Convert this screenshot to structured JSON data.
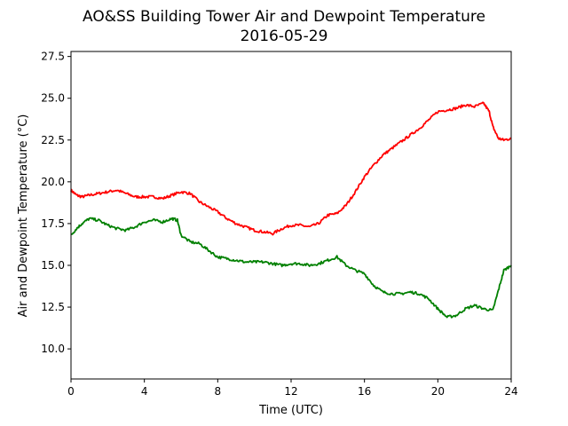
{
  "chart_data": {
    "type": "line",
    "title": "AO&SS Building Tower Air and Dewpoint Temperature",
    "subtitle": "2016-05-29",
    "xlabel": "Time (UTC)",
    "ylabel": "Air and Dewpoint Temperature (°C)",
    "xlim": [
      0,
      24
    ],
    "ylim": [
      8.2,
      27.8
    ],
    "xticks": [
      0,
      4,
      8,
      12,
      16,
      20,
      24
    ],
    "xtick_labels": [
      "0",
      "4",
      "8",
      "12",
      "16",
      "20",
      "24"
    ],
    "yticks": [
      10.0,
      12.5,
      15.0,
      17.5,
      20.0,
      22.5,
      25.0,
      27.5
    ],
    "ytick_labels": [
      "10.0",
      "12.5",
      "15.0",
      "17.5",
      "20.0",
      "22.5",
      "25.0",
      "27.5"
    ],
    "grid": false,
    "series": [
      {
        "color": "#ff0000",
        "x": [
          0,
          0.3,
          0.6,
          1.0,
          1.5,
          2.0,
          2.5,
          3.0,
          3.5,
          4.0,
          4.5,
          5.0,
          5.5,
          6.0,
          6.5,
          7.0,
          7.5,
          8.0,
          8.5,
          9.0,
          9.5,
          10.0,
          10.5,
          11.0,
          11.5,
          12.0,
          12.5,
          13.0,
          13.5,
          14.0,
          14.5,
          15.0,
          15.5,
          16.0,
          16.5,
          17.0,
          17.5,
          18.0,
          18.5,
          19.0,
          19.5,
          20.0,
          20.5,
          21.0,
          21.5,
          22.0,
          22.5,
          22.8,
          23.0,
          23.3,
          23.6,
          24.0
        ],
        "y": [
          19.5,
          19.2,
          19.1,
          19.2,
          19.3,
          19.4,
          19.5,
          19.3,
          19.1,
          19.1,
          19.1,
          19.0,
          19.2,
          19.4,
          19.3,
          18.8,
          18.5,
          18.2,
          17.8,
          17.5,
          17.3,
          17.1,
          17.0,
          16.9,
          17.2,
          17.4,
          17.4,
          17.3,
          17.5,
          18.0,
          18.1,
          18.6,
          19.4,
          20.3,
          21.0,
          21.6,
          22.0,
          22.4,
          22.8,
          23.2,
          23.7,
          24.2,
          24.3,
          24.4,
          24.6,
          24.5,
          24.7,
          24.2,
          23.3,
          22.6,
          22.5,
          22.6
        ]
      },
      {
        "color": "#008000",
        "x": [
          0,
          0.3,
          0.6,
          1.0,
          1.5,
          2.0,
          2.5,
          3.0,
          3.5,
          4.0,
          4.5,
          5.0,
          5.5,
          5.8,
          6.0,
          6.5,
          7.0,
          7.5,
          8.0,
          8.5,
          9.0,
          9.5,
          10.0,
          10.5,
          11.0,
          11.5,
          12.0,
          12.5,
          13.0,
          13.5,
          14.0,
          14.5,
          15.0,
          15.5,
          16.0,
          16.5,
          17.0,
          17.5,
          18.0,
          18.5,
          19.0,
          19.5,
          20.0,
          20.5,
          21.0,
          21.5,
          22.0,
          22.5,
          23.0,
          23.3,
          23.6,
          24.0
        ],
        "y": [
          16.8,
          17.2,
          17.5,
          17.8,
          17.7,
          17.4,
          17.2,
          17.1,
          17.3,
          17.6,
          17.7,
          17.6,
          17.8,
          17.7,
          16.8,
          16.4,
          16.3,
          15.9,
          15.5,
          15.4,
          15.3,
          15.2,
          15.2,
          15.2,
          15.1,
          15.0,
          15.1,
          15.1,
          15.0,
          15.1,
          15.3,
          15.5,
          15.0,
          14.7,
          14.5,
          13.8,
          13.4,
          13.3,
          13.3,
          13.4,
          13.3,
          13.0,
          12.4,
          11.9,
          12.0,
          12.4,
          12.6,
          12.4,
          12.3,
          13.5,
          14.7,
          15.0
        ]
      }
    ]
  }
}
